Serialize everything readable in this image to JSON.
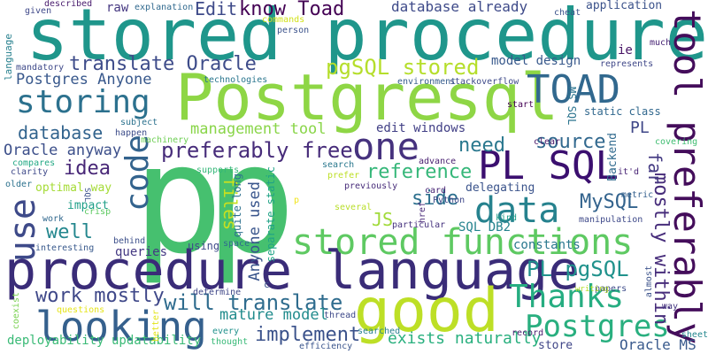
{
  "title": "",
  "words": [
    {
      "text": "p",
      "color": "#46c06f"
    },
    {
      "text": "p",
      "color": "#46c06f"
    },
    {
      "text": "stored procedure",
      "color": "#1f968b"
    },
    {
      "text": "Postgresql",
      "color": "#8ed645"
    },
    {
      "text": "procedure language",
      "color": "#3a2c78"
    },
    {
      "text": "good",
      "color": "#bddf26"
    },
    {
      "text": "tool preferably",
      "color": "#440d5b"
    },
    {
      "text": "PL SQL",
      "color": "#3b0f6f"
    },
    {
      "text": "looking",
      "color": "#35608d"
    },
    {
      "text": "TOAD",
      "color": "#31688e"
    },
    {
      "text": "stored functions",
      "color": "#5ec962"
    },
    {
      "text": "data",
      "color": "#26828e"
    },
    {
      "text": "Thanks",
      "color": "#26ad81"
    },
    {
      "text": "Postgres",
      "color": "#29af7f"
    },
    {
      "text": "storing",
      "color": "#2c718e"
    },
    {
      "text": "code",
      "color": "#33638d"
    },
    {
      "text": "one",
      "color": "#46327e"
    },
    {
      "text": "use",
      "color": "#3e4a89"
    },
    {
      "text": "will translate",
      "color": "#2f6c8e"
    },
    {
      "text": "translate Oracle",
      "color": "#3e4c8a"
    },
    {
      "text": "pgSQL stored",
      "color": "#b5de2b"
    },
    {
      "text": "preferably free",
      "color": "#472c7a"
    },
    {
      "text": "mostly within",
      "color": "#472d7b"
    },
    {
      "text": "PL pgSQL",
      "color": "#20928c"
    },
    {
      "text": "work mostly",
      "color": "#3f4889"
    },
    {
      "text": "implement",
      "color": "#3b528b"
    },
    {
      "text": "exists naturally",
      "color": "#2ab07f"
    },
    {
      "text": "MySQL",
      "color": "#33638d"
    },
    {
      "text": "database already",
      "color": "#3e4a89"
    },
    {
      "text": "Edit",
      "color": "#3e4a89"
    },
    {
      "text": "know Toad",
      "color": "#440154"
    },
    {
      "text": "source",
      "color": "#31688e"
    },
    {
      "text": "reference",
      "color": "#35b779"
    },
    {
      "text": "need",
      "color": "#2a788e"
    },
    {
      "text": "idea",
      "color": "#482777"
    },
    {
      "text": "well",
      "color": "#24878e"
    },
    {
      "text": "database",
      "color": "#32648e"
    },
    {
      "text": "side",
      "color": "#2d708e"
    },
    {
      "text": "Oracle anyway",
      "color": "#3c4f8a"
    },
    {
      "text": "Postgres Anyone",
      "color": "#38588c"
    },
    {
      "text": "management tool",
      "color": "#89d548"
    },
    {
      "text": "far",
      "color": "#443a83"
    },
    {
      "text": "JS",
      "color": "#a0da39"
    },
    {
      "text": "files",
      "color": "#c8e020"
    },
    {
      "text": "Anyone used",
      "color": "#39558c"
    },
    {
      "text": "mature model",
      "color": "#228c8d"
    },
    {
      "text": "model design",
      "color": "#38598c"
    },
    {
      "text": "application",
      "color": "#3b528b"
    },
    {
      "text": "edit windows",
      "color": "#424086"
    },
    {
      "text": "PL",
      "color": "#3f4788"
    },
    {
      "text": "Oracle MS",
      "color": "#38598c"
    },
    {
      "text": "SQL DB2",
      "color": "#25838e"
    },
    {
      "text": "constants",
      "color": "#2a788e"
    },
    {
      "text": "queries",
      "color": "#443983"
    },
    {
      "text": "static class",
      "color": "#31688e"
    },
    {
      "text": "raw",
      "color": "#453781"
    },
    {
      "text": "Backend",
      "color": "#306a8e"
    },
    {
      "text": "optimal way",
      "color": "#a5db36"
    },
    {
      "text": "store",
      "color": "#404688"
    },
    {
      "text": "ie",
      "color": "#471365"
    },
    {
      "text": "MS SQL",
      "color": "#2b748e"
    },
    {
      "text": "delegating",
      "color": "#3a538b"
    },
    {
      "text": "quite long",
      "color": "#2d708e"
    },
    {
      "text": "separate static",
      "color": "#20a386"
    },
    {
      "text": "impact",
      "color": "#1f9f88"
    },
    {
      "text": "deployability updatability",
      "color": "#3aba76"
    },
    {
      "text": "given",
      "color": "#3f4889"
    },
    {
      "text": "described",
      "color": "#481b6d"
    },
    {
      "text": "explanation",
      "color": "#30698e"
    },
    {
      "text": "commands",
      "color": "#d2e21b"
    },
    {
      "text": "cheat",
      "color": "#3b528b"
    },
    {
      "text": "language",
      "color": "#27808e"
    },
    {
      "text": "mandatory",
      "color": "#3e4989"
    },
    {
      "text": "person",
      "color": "#3b528b"
    },
    {
      "text": "much",
      "color": "#482475"
    },
    {
      "text": "technologies",
      "color": "#2a768e"
    },
    {
      "text": "environment",
      "color": "#365c8d"
    },
    {
      "text": "stackoverflow",
      "color": "#3e4a89"
    },
    {
      "text": "represents",
      "color": "#3f4788"
    },
    {
      "text": "start",
      "color": "#440154"
    },
    {
      "text": "clear",
      "color": "#481668"
    },
    {
      "text": "covering",
      "color": "#40bd72"
    },
    {
      "text": "card",
      "color": "#482475"
    },
    {
      "text": "subject",
      "color": "#2c728e"
    },
    {
      "text": "happen",
      "color": "#3d4d8a"
    },
    {
      "text": "compares",
      "color": "#22a884"
    },
    {
      "text": "machinery",
      "color": "#70cf57"
    },
    {
      "text": "clarity",
      "color": "#3e4989"
    },
    {
      "text": "older",
      "color": "#2c728e"
    },
    {
      "text": "supports",
      "color": "#35b779"
    },
    {
      "text": "search",
      "color": "#2a788e"
    },
    {
      "text": "prefer",
      "color": "#bddf26"
    },
    {
      "text": "advance",
      "color": "#481f70"
    },
    {
      "text": "it'd",
      "color": "#482475"
    },
    {
      "text": "metric",
      "color": "#34608d"
    },
    {
      "text": "previously",
      "color": "#472c7a"
    },
    {
      "text": "SQL",
      "color": "#3b528b"
    },
    {
      "text": "work",
      "color": "#31688e"
    },
    {
      "text": "crisp",
      "color": "#5ec962"
    },
    {
      "text": "several",
      "color": "#b8de29"
    },
    {
      "text": "Python",
      "color": "#3f4889"
    },
    {
      "text": "href",
      "color": "#482878"
    },
    {
      "text": "manipulation",
      "color": "#3e4989"
    },
    {
      "text": "kind",
      "color": "#1f9e89"
    },
    {
      "text": "behind",
      "color": "#3c4f8a"
    },
    {
      "text": "interesting",
      "color": "#38598c"
    },
    {
      "text": "using",
      "color": "#3e4a89"
    },
    {
      "text": "space",
      "color": "#2f6b8e"
    },
    {
      "text": "particular",
      "color": "#46327e"
    },
    {
      "text": "searched",
      "color": "#277f8e"
    },
    {
      "text": "record",
      "color": "#481b6d"
    },
    {
      "text": "papers",
      "color": "#3e4c8a"
    },
    {
      "text": "writing",
      "color": "#b5de2b"
    },
    {
      "text": "almost",
      "color": "#3b528b"
    },
    {
      "text": "way",
      "color": "#453781"
    },
    {
      "text": "determine",
      "color": "#3f4788"
    },
    {
      "text": "coexist",
      "color": "#7ad151"
    },
    {
      "text": "questions",
      "color": "#e5e419"
    },
    {
      "text": "better",
      "color": "#e2e418"
    },
    {
      "text": "thread",
      "color": "#3e4989"
    },
    {
      "text": "every",
      "color": "#21918c"
    },
    {
      "text": "thought",
      "color": "#38b977"
    },
    {
      "text": "efficiency",
      "color": "#3a548c"
    },
    {
      "text": "sheet",
      "color": "#24878e"
    },
    {
      "text": "c",
      "color": "#3b528b"
    },
    {
      "text": "p",
      "color": "#f1e51d"
    }
  ]
}
